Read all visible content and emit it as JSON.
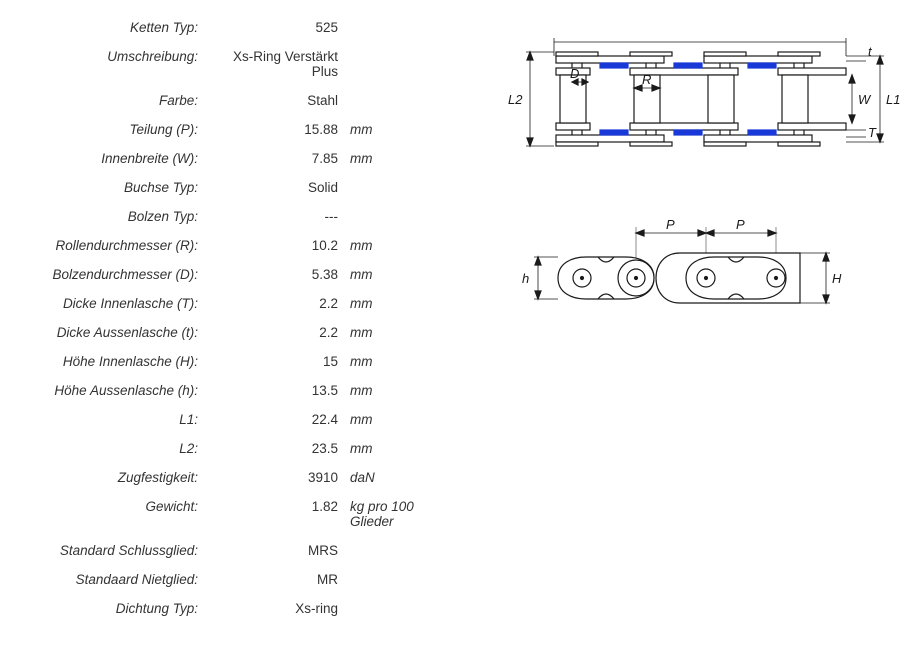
{
  "specs": [
    {
      "label": "Ketten Typ:",
      "value": "525",
      "unit": ""
    },
    {
      "label": "Umschreibung:",
      "value": "Xs-Ring Verstärkt Plus",
      "unit": ""
    },
    {
      "label": "Farbe:",
      "value": "Stahl",
      "unit": ""
    },
    {
      "label": "Teilung (P):",
      "value": "15.88",
      "unit": "mm"
    },
    {
      "label": "Innenbreite (W):",
      "value": "7.85",
      "unit": "mm"
    },
    {
      "label": "Buchse Typ:",
      "value": "Solid",
      "unit": ""
    },
    {
      "label": "Bolzen Typ:",
      "value": "---",
      "unit": ""
    },
    {
      "label": "Rollendurchmesser (R):",
      "value": "10.2",
      "unit": "mm"
    },
    {
      "label": "Bolzendurchmesser (D):",
      "value": "5.38",
      "unit": "mm"
    },
    {
      "label": "Dicke Innenlasche (T):",
      "value": "2.2",
      "unit": "mm"
    },
    {
      "label": "Dicke Aussenlasche (t):",
      "value": "2.2",
      "unit": "mm"
    },
    {
      "label": "Höhe Innenlasche (H):",
      "value": "15",
      "unit": "mm"
    },
    {
      "label": "Höhe Aussenlasche (h):",
      "value": "13.5",
      "unit": "mm"
    },
    {
      "label": "L1:",
      "value": "22.4",
      "unit": "mm"
    },
    {
      "label": "L2:",
      "value": "23.5",
      "unit": "mm"
    },
    {
      "label": "Zugfestigkeit:",
      "value": "3910",
      "unit": "daN"
    },
    {
      "label": "Gewicht:",
      "value": "1.82",
      "unit": "kg pro 100 Glieder"
    },
    {
      "label": "Standard Schlussglied:",
      "value": "MRS",
      "unit": ""
    },
    {
      "label": "Standaard Nietglied:",
      "value": "MR",
      "unit": ""
    },
    {
      "label": "Dichtung Typ:",
      "value": "Xs-ring",
      "unit": ""
    }
  ],
  "diagram_side": {
    "type": "technical-drawing",
    "description": "chain-side-view",
    "dim_labels": {
      "D": "D",
      "R": "R",
      "L2": "L2",
      "L1": "L1",
      "W": "W",
      "t": "t",
      "T": "T"
    },
    "colors": {
      "stroke": "#1a1a1a",
      "seal": "#1838d8",
      "fill": "#ffffff"
    },
    "stroke_width": 1.2
  },
  "diagram_top": {
    "type": "technical-drawing",
    "description": "chain-top-view",
    "dim_labels": {
      "P": "P",
      "h": "h",
      "H": "H"
    },
    "colors": {
      "stroke": "#1a1a1a",
      "fill": "#ffffff"
    },
    "stroke_width": 1.2
  }
}
